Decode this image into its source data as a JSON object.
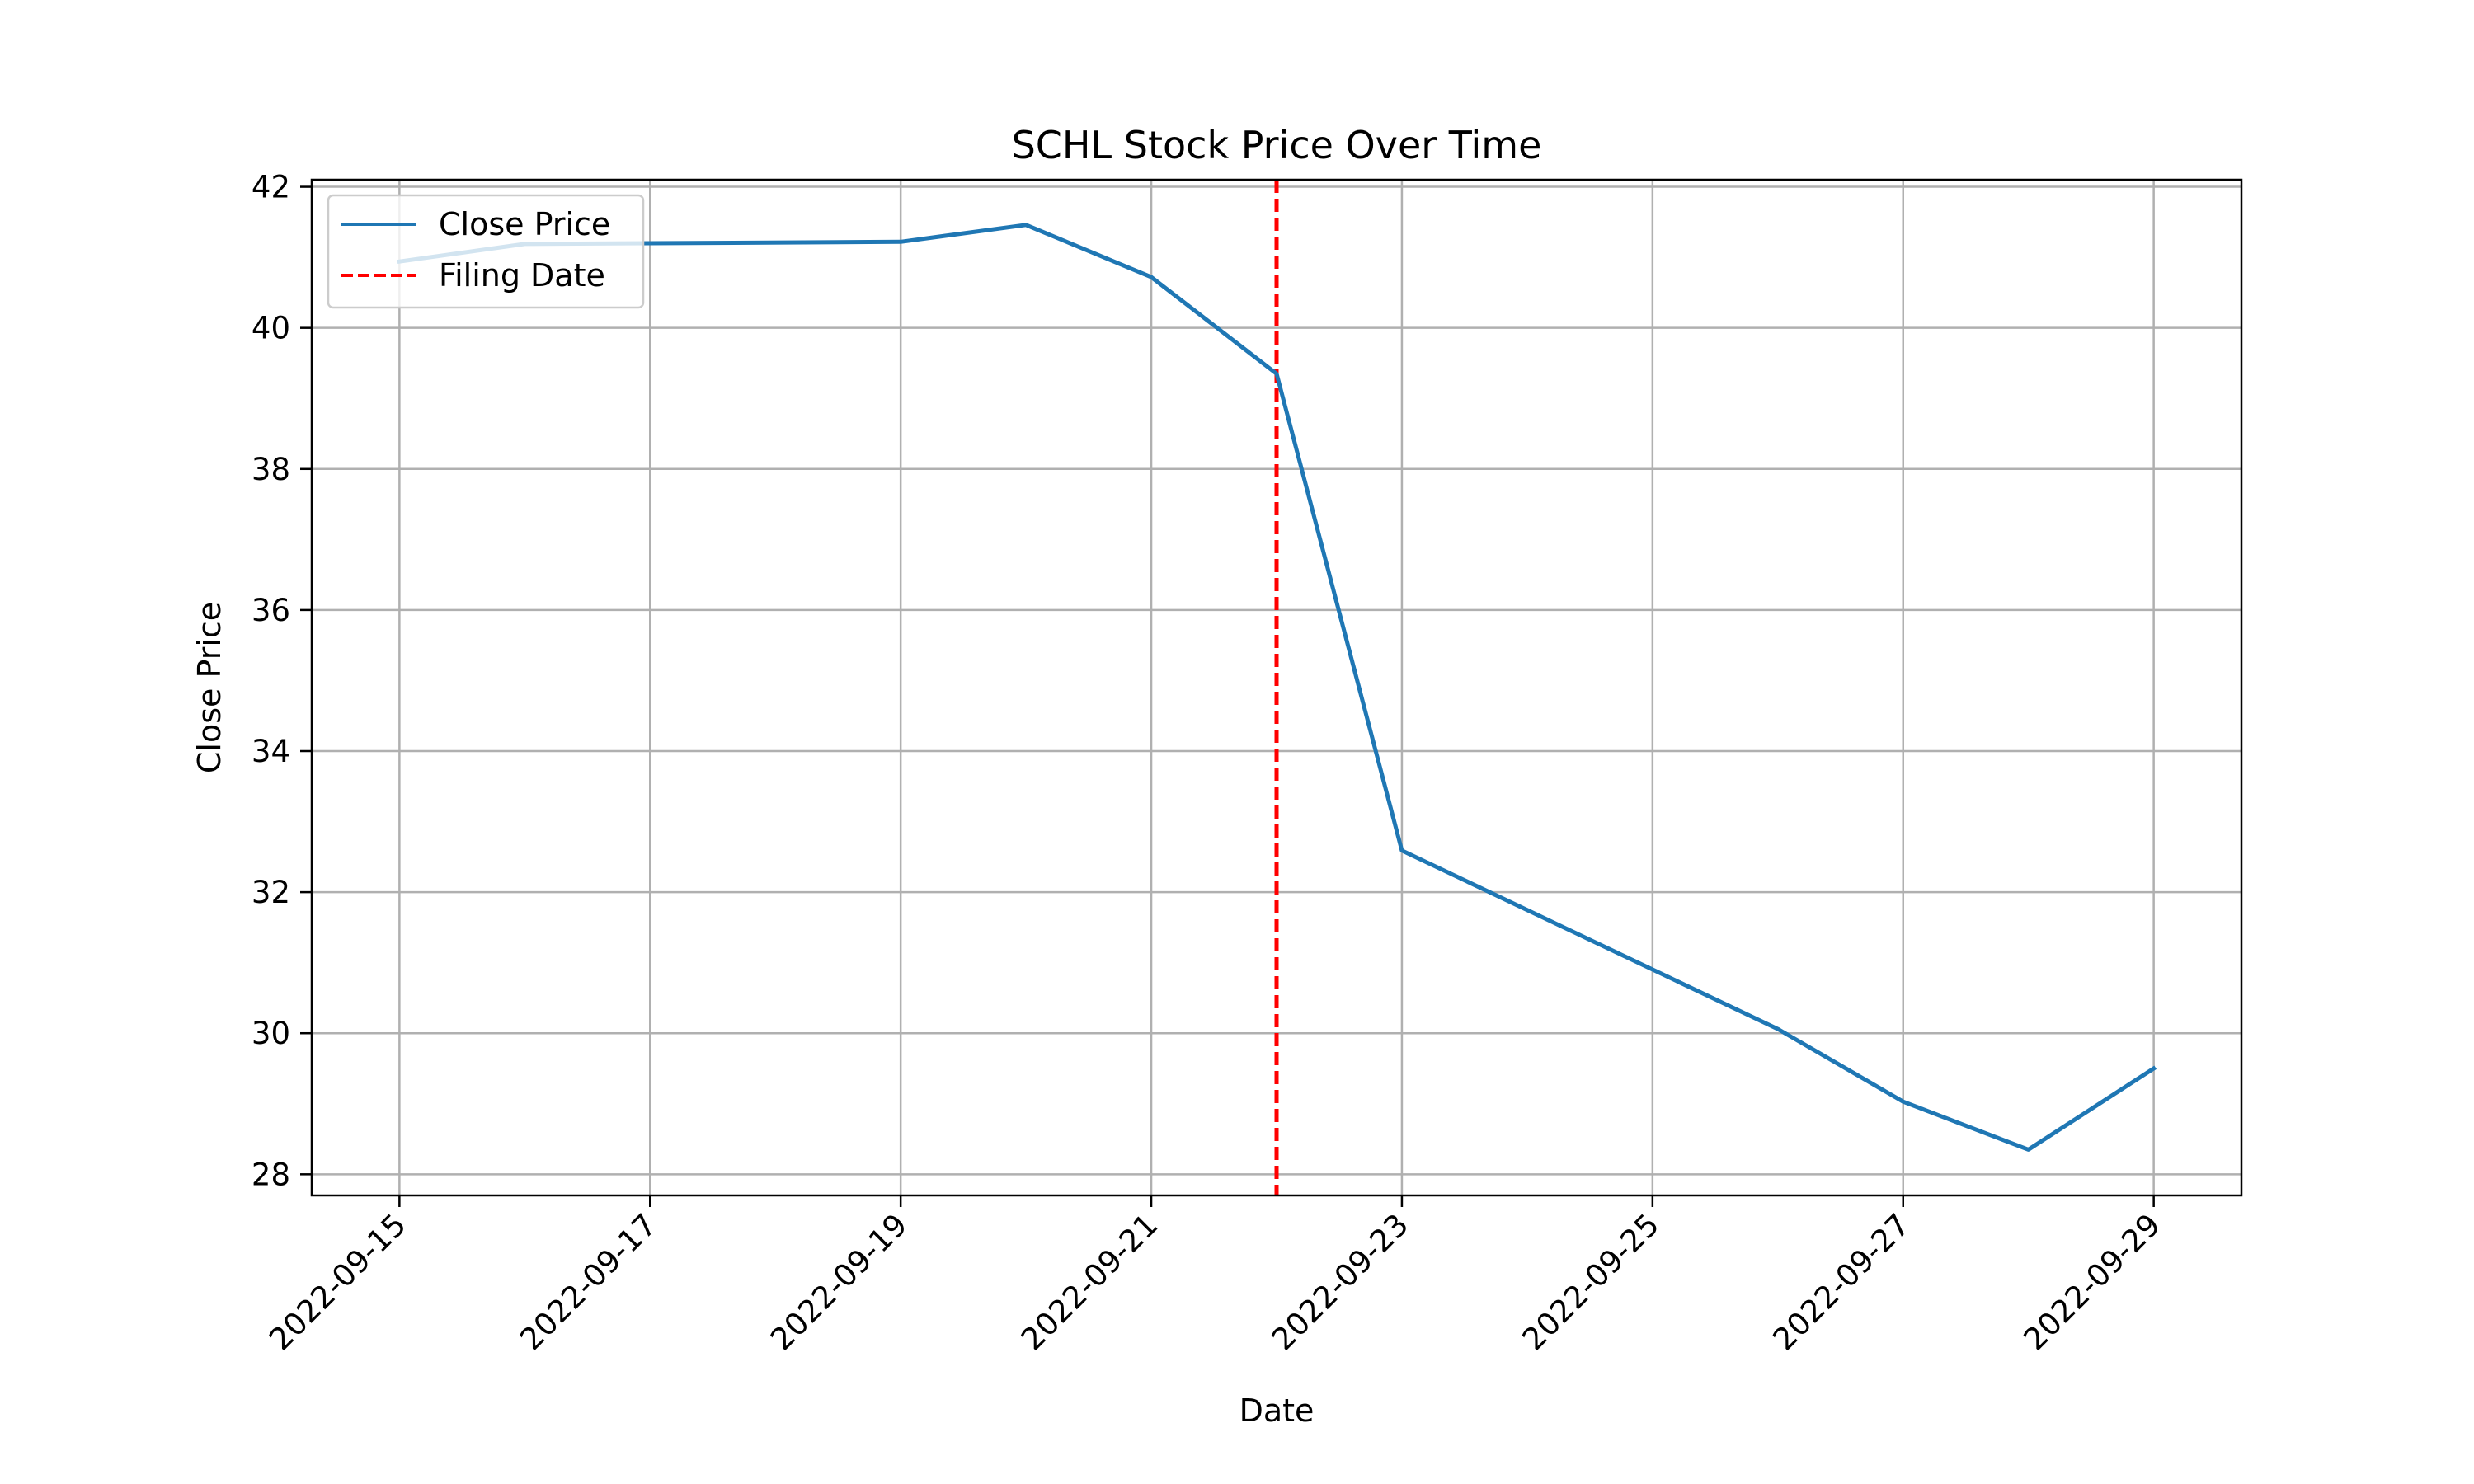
{
  "chart_data": {
    "type": "line",
    "title": "SCHL Stock Price Over Time",
    "xlabel": "Date",
    "ylabel": "Close Price",
    "x_ticks": [
      "2022-09-15",
      "2022-09-17",
      "2022-09-19",
      "2022-09-21",
      "2022-09-23",
      "2022-09-25",
      "2022-09-27",
      "2022-09-29"
    ],
    "y_ticks": [
      28,
      30,
      32,
      34,
      36,
      38,
      40,
      42
    ],
    "xlim": [
      "2022-09-14.3",
      "2022-09-29.7"
    ],
    "ylim": [
      27.7,
      42.1
    ],
    "grid": true,
    "legend_position": "upper-left",
    "series": [
      {
        "name": "Close Price",
        "color": "#1f77b4",
        "style": "solid",
        "points": [
          {
            "x": "2022-09-15",
            "y": 40.94
          },
          {
            "x": "2022-09-16",
            "y": 41.19
          },
          {
            "x": "2022-09-19",
            "y": 41.22
          },
          {
            "x": "2022-09-20",
            "y": 41.46
          },
          {
            "x": "2022-09-21",
            "y": 40.72
          },
          {
            "x": "2022-09-22",
            "y": 39.35
          },
          {
            "x": "2022-09-23",
            "y": 32.59
          },
          {
            "x": "2022-09-26",
            "y": 30.06
          },
          {
            "x": "2022-09-27",
            "y": 29.03
          },
          {
            "x": "2022-09-28",
            "y": 28.35
          },
          {
            "x": "2022-09-29",
            "y": 29.5
          }
        ]
      }
    ],
    "vlines": [
      {
        "name": "Filing Date",
        "x": "2022-09-22",
        "color": "#ff0000",
        "style": "dashed"
      }
    ]
  }
}
